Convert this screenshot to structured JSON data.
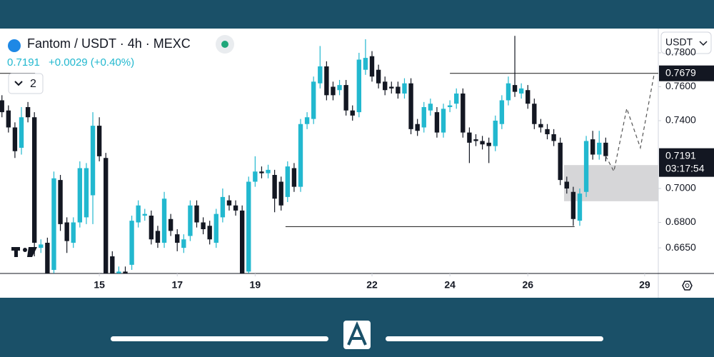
{
  "chart_data": {
    "type": "candlestick",
    "symbol": "Fantom / USDT · 4h · MEXC",
    "last_price": "0.7191",
    "change": "+0.0029 (+0.40%)",
    "indicator_count": "2",
    "currency": "USDT",
    "up_color": "#22b8cf",
    "down_color": "#131722",
    "xlim": [
      12.45,
      29.35
    ],
    "xticks": [
      15,
      17,
      19,
      22,
      24,
      26,
      29
    ],
    "ylim": [
      0.6499,
      0.7943
    ],
    "yticks": [
      {
        "value": 0.78,
        "label": "0.7800"
      },
      {
        "value": 0.76,
        "label": "0.7600"
      },
      {
        "value": 0.74,
        "label": "0.7400"
      },
      {
        "value": 0.7,
        "label": "0.7000"
      },
      {
        "value": 0.68,
        "label": "0.6800"
      },
      {
        "value": 0.665,
        "label": "0.6650"
      }
    ],
    "x": [
      12.5,
      12.6667,
      12.8333,
      13,
      13.1667,
      13.3333,
      13.5,
      13.6667,
      13.8333,
      14,
      14.1667,
      14.3333,
      14.5,
      14.6667,
      14.8333,
      15,
      15.1667,
      15.3333,
      15.5,
      15.6667,
      15.8333,
      16,
      16.1667,
      16.3333,
      16.5,
      16.6667,
      16.8333,
      17,
      17.1667,
      17.3333,
      17.5,
      17.6667,
      17.8333,
      18,
      18.1667,
      18.3333,
      18.5,
      18.6667,
      18.8333,
      19,
      19.1667,
      19.3333,
      19.5,
      19.6667,
      19.8333,
      20,
      20.1667,
      20.3333,
      20.5,
      20.6667,
      20.8333,
      21,
      21.1667,
      21.3333,
      21.5,
      21.6667,
      21.8333,
      22,
      22.1667,
      22.3333,
      22.5,
      22.6667,
      22.8333,
      23,
      23.1667,
      23.3333,
      23.5,
      23.6667,
      23.8333,
      24,
      24.1667,
      24.3333,
      24.5,
      24.6667,
      24.8333,
      25,
      25.1667,
      25.3333,
      25.5,
      25.6667,
      25.8333,
      26,
      26.1667,
      26.3333,
      26.5,
      26.6667,
      26.8333,
      27,
      27.1667,
      27.3333,
      27.5,
      27.6667,
      27.8333,
      28
    ],
    "open": [
      0.752,
      0.746,
      0.736,
      0.724,
      0.748,
      0.742,
      0.665,
      0.668,
      0.652,
      0.705,
      0.68,
      0.668,
      0.68,
      0.683,
      0.696,
      0.737,
      0.718,
      0.66,
      0.65,
      0.651,
      0.655,
      0.68,
      0.684,
      0.684,
      0.675,
      0.668,
      0.682,
      0.673,
      0.665,
      0.672,
      0.69,
      0.68,
      0.678,
      0.668,
      0.683,
      0.693,
      0.69,
      0.687,
      0.651,
      0.704,
      0.71,
      0.709,
      0.708,
      0.704,
      0.695,
      0.712,
      0.701,
      0.738,
      0.741,
      0.762,
      0.772,
      0.76,
      0.758,
      0.761,
      0.746,
      0.745,
      0.77,
      0.778,
      0.77,
      0.763,
      0.76,
      0.76,
      0.756,
      0.762,
      0.738,
      0.736,
      0.746,
      0.745,
      0.733,
      0.748,
      0.75,
      0.756,
      0.733,
      0.729,
      0.728,
      0.727,
      0.725,
      0.738,
      0.752,
      0.761,
      0.756,
      0.758,
      0.75,
      0.738,
      0.735,
      0.732,
      0.727,
      0.704,
      0.698,
      0.681,
      0.698,
      0.729,
      0.72,
      0.727
    ],
    "high": [
      0.755,
      0.749,
      0.739,
      0.748,
      0.751,
      0.745,
      0.67,
      0.671,
      0.71,
      0.708,
      0.683,
      0.683,
      0.716,
      0.715,
      0.745,
      0.742,
      0.721,
      0.663,
      0.654,
      0.654,
      0.684,
      0.693,
      0.688,
      0.687,
      0.678,
      0.698,
      0.685,
      0.676,
      0.673,
      0.693,
      0.693,
      0.683,
      0.681,
      0.688,
      0.7,
      0.696,
      0.693,
      0.69,
      0.707,
      0.719,
      0.713,
      0.714,
      0.711,
      0.707,
      0.716,
      0.715,
      0.741,
      0.745,
      0.766,
      0.784,
      0.775,
      0.763,
      0.764,
      0.764,
      0.749,
      0.78,
      0.788,
      0.781,
      0.773,
      0.766,
      0.763,
      0.763,
      0.765,
      0.765,
      0.741,
      0.751,
      0.753,
      0.748,
      0.75,
      0.752,
      0.759,
      0.759,
      0.736,
      0.732,
      0.731,
      0.73,
      0.743,
      0.755,
      0.766,
      0.79,
      0.762,
      0.761,
      0.753,
      0.741,
      0.738,
      0.735,
      0.73,
      0.707,
      0.701,
      0.7,
      0.731,
      0.734,
      0.734,
      0.73
    ],
    "low": [
      0.742,
      0.733,
      0.718,
      0.72,
      0.739,
      0.66,
      0.662,
      0.65,
      0.65,
      0.675,
      0.662,
      0.665,
      0.677,
      0.679,
      0.679,
      0.716,
      0.65,
      0.65,
      0.65,
      0.65,
      0.652,
      0.677,
      0.681,
      0.667,
      0.665,
      0.665,
      0.672,
      0.663,
      0.662,
      0.669,
      0.677,
      0.673,
      0.667,
      0.665,
      0.68,
      0.687,
      0.684,
      0.65,
      0.65,
      0.701,
      0.706,
      0.706,
      0.686,
      0.687,
      0.692,
      0.698,
      0.698,
      0.735,
      0.738,
      0.759,
      0.752,
      0.752,
      0.755,
      0.743,
      0.74,
      0.742,
      0.767,
      0.763,
      0.759,
      0.755,
      0.756,
      0.753,
      0.753,
      0.732,
      0.731,
      0.733,
      0.743,
      0.73,
      0.73,
      0.745,
      0.747,
      0.73,
      0.715,
      0.725,
      0.723,
      0.715,
      0.722,
      0.735,
      0.749,
      0.754,
      0.753,
      0.747,
      0.735,
      0.733,
      0.729,
      0.725,
      0.702,
      0.697,
      0.678,
      0.678,
      0.695,
      0.717,
      0.717,
      0.716
    ],
    "close": [
      0.745,
      0.736,
      0.722,
      0.742,
      0.742,
      0.668,
      0.667,
      0.65,
      0.706,
      0.679,
      0.669,
      0.68,
      0.712,
      0.712,
      0.737,
      0.719,
      0.65,
      0.65,
      0.651,
      0.65,
      0.681,
      0.69,
      0.685,
      0.67,
      0.668,
      0.694,
      0.675,
      0.668,
      0.67,
      0.69,
      0.68,
      0.676,
      0.67,
      0.685,
      0.695,
      0.69,
      0.687,
      0.65,
      0.704,
      0.71,
      0.709,
      0.711,
      0.694,
      0.69,
      0.713,
      0.701,
      0.738,
      0.742,
      0.763,
      0.772,
      0.755,
      0.755,
      0.761,
      0.746,
      0.743,
      0.776,
      0.777,
      0.766,
      0.762,
      0.758,
      0.759,
      0.756,
      0.762,
      0.735,
      0.734,
      0.748,
      0.75,
      0.733,
      0.747,
      0.749,
      0.756,
      0.733,
      0.727,
      0.728,
      0.726,
      0.725,
      0.74,
      0.752,
      0.762,
      0.757,
      0.759,
      0.75,
      0.738,
      0.736,
      0.732,
      0.728,
      0.705,
      0.7,
      0.682,
      0.697,
      0.728,
      0.72,
      0.727,
      0.7191
    ],
    "lines": [
      {
        "y": 0.7679,
        "x": [
          12.45,
          13.35
        ]
      },
      {
        "y": 0.7679,
        "x": [
          24.0,
          29.35
        ]
      },
      {
        "y": 0.6775,
        "x": [
          19.78,
          27.2
        ]
      }
    ],
    "zone": {
      "y": [
        0.6925,
        0.7138
      ],
      "x": [
        26.93,
        29.35
      ]
    },
    "projection": {
      "x": [
        28.0,
        28.21,
        28.54,
        28.89,
        29.24
      ],
      "y": [
        0.7191,
        0.7101,
        0.7472,
        0.724,
        0.767
      ]
    },
    "price_labels": [
      {
        "value": 0.7679,
        "label": "0.7679"
      },
      {
        "value": 0.7191,
        "label": "0.7191",
        "countdown": "03:17:54"
      }
    ]
  }
}
